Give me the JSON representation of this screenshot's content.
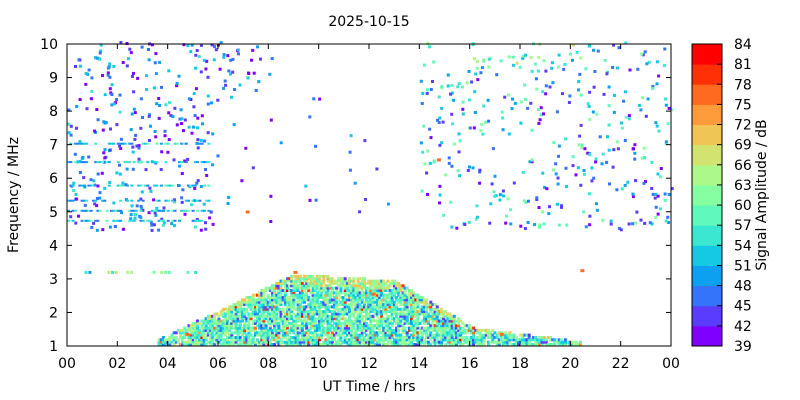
{
  "chart_data": {
    "type": "heatmap",
    "title": "2025-10-15",
    "xlabel": "UT Time / hrs",
    "ylabel": "Frequency / MHz",
    "colorbar_label": "Signal Amplitude / dB",
    "xlim": [
      0,
      24
    ],
    "ylim": [
      1,
      10
    ],
    "x_ticks": [
      "00",
      "02",
      "04",
      "06",
      "08",
      "10",
      "12",
      "14",
      "16",
      "18",
      "20",
      "22",
      "00"
    ],
    "y_ticks": [
      "1",
      "2",
      "3",
      "4",
      "5",
      "6",
      "7",
      "8",
      "9",
      "10"
    ],
    "colorbar_ticks": [
      "39",
      "42",
      "45",
      "48",
      "51",
      "54",
      "57",
      "60",
      "63",
      "66",
      "69",
      "72",
      "75",
      "78",
      "81",
      "84"
    ],
    "colorbar_range": [
      39,
      84
    ],
    "colorbar_colors": [
      "#8000ff",
      "#5a3cfe",
      "#3474fa",
      "#0ea0f0",
      "#15c8e4",
      "#3be7d1",
      "#60f9bb",
      "#86ffa3",
      "#acf88a",
      "#d2e370",
      "#f0c555",
      "#ff9b3b",
      "#ff6a21",
      "#ff3006",
      "#ff0000"
    ],
    "features": [
      {
        "name": "sporadic scatter high band",
        "t_range": [
          0,
          8
        ],
        "f_range": [
          4.5,
          10
        ],
        "level": "low"
      },
      {
        "name": "horizontal streaks",
        "t_range": [
          0,
          5.5
        ],
        "f_levels": [
          4.7,
          5.0,
          5.3,
          5.75,
          6.4,
          7.0
        ],
        "level": "low-mid"
      },
      {
        "name": "upper band late",
        "t_range": [
          14,
          24
        ],
        "f_range": [
          4.5,
          10
        ],
        "level": "low-mid"
      },
      {
        "name": "daytime low-frequency dome",
        "t_range": [
          3.5,
          20.5
        ],
        "f_peak": 3.1,
        "t_peak": 9.5,
        "level": "mid-high"
      }
    ]
  }
}
